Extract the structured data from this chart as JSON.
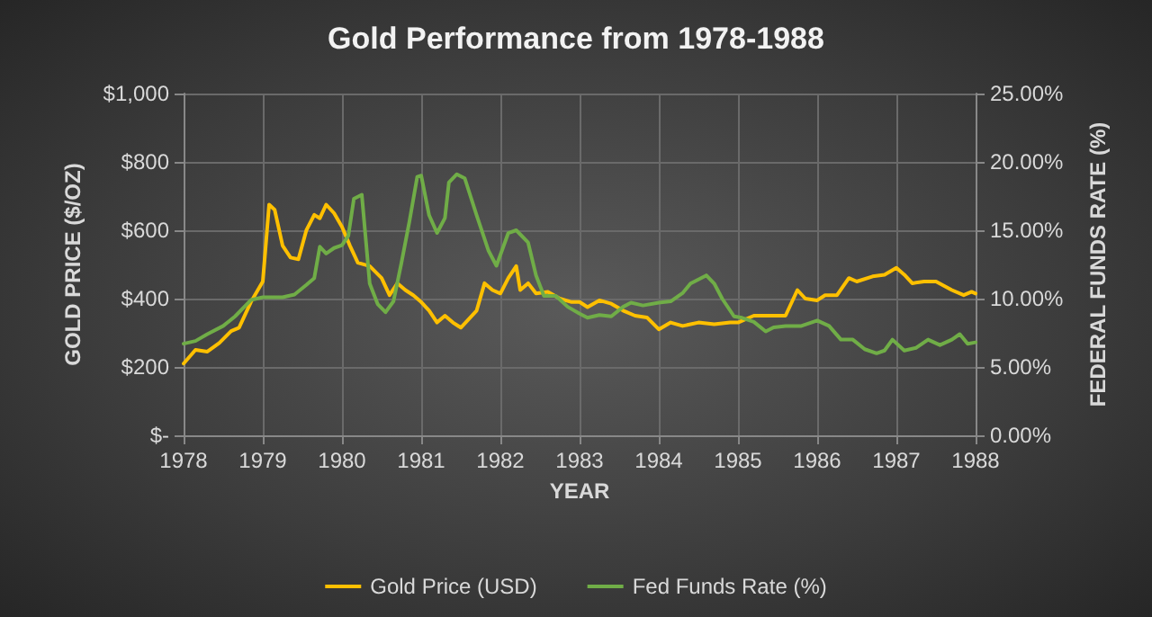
{
  "chart_data": {
    "type": "line",
    "title": "Gold Performance from 1978-1988",
    "xlabel": "YEAR",
    "ylabel": "GOLD PRICE ($/OZ)",
    "y2label": "FEDERAL FUNDS RATE (%)",
    "xlim": [
      1978,
      1988
    ],
    "xticks": [
      1978,
      1979,
      1980,
      1981,
      1982,
      1983,
      1984,
      1985,
      1986,
      1987,
      1988
    ],
    "ylim": [
      0,
      1000
    ],
    "yticks": [
      {
        "value": 0,
        "label": "$-"
      },
      {
        "value": 200,
        "label": "$200"
      },
      {
        "value": 400,
        "label": "$400"
      },
      {
        "value": 600,
        "label": "$600"
      },
      {
        "value": 800,
        "label": "$800"
      },
      {
        "value": 1000,
        "label": "$1,000"
      }
    ],
    "y2lim": [
      0,
      25
    ],
    "y2ticks": [
      {
        "value": 0,
        "label": "0.00%"
      },
      {
        "value": 5,
        "label": "5.00%"
      },
      {
        "value": 10,
        "label": "10.00%"
      },
      {
        "value": 15,
        "label": "15.00%"
      },
      {
        "value": 20,
        "label": "20.00%"
      },
      {
        "value": 25,
        "label": "25.00%"
      }
    ],
    "grid": true,
    "legend": "bottom",
    "marker": "none",
    "line_style": "solid",
    "series": [
      {
        "name": "Gold Price (USD)",
        "color": "#ffc000",
        "x": [
          1978,
          1978.15,
          1978.3,
          1978.45,
          1978.6,
          1978.7,
          1978.85,
          1979,
          1979.08,
          1979.15,
          1979.25,
          1979.35,
          1979.45,
          1979.55,
          1979.65,
          1979.72,
          1979.8,
          1979.9,
          1980,
          1980.1,
          1980.2,
          1980.35,
          1980.5,
          1980.6,
          1980.7,
          1980.8,
          1980.9,
          1981,
          1981.1,
          1981.2,
          1981.3,
          1981.4,
          1981.5,
          1981.6,
          1981.7,
          1981.8,
          1981.9,
          1982,
          1982.1,
          1982.2,
          1982.25,
          1982.35,
          1982.45,
          1982.6,
          1982.75,
          1982.9,
          1983,
          1983.1,
          1983.25,
          1983.4,
          1983.55,
          1983.7,
          1983.85,
          1984,
          1984.15,
          1984.3,
          1984.5,
          1984.7,
          1984.9,
          1985,
          1985.2,
          1985.4,
          1985.6,
          1985.75,
          1985.85,
          1986,
          1986.1,
          1986.25,
          1986.4,
          1986.5,
          1986.7,
          1986.85,
          1987,
          1987.1,
          1987.2,
          1987.35,
          1987.5,
          1987.7,
          1987.85,
          1987.95,
          1988
        ],
        "values": [
          210,
          250,
          245,
          270,
          305,
          315,
          390,
          450,
          675,
          660,
          555,
          520,
          515,
          600,
          645,
          635,
          675,
          650,
          610,
          555,
          505,
          495,
          460,
          410,
          445,
          425,
          410,
          390,
          365,
          330,
          350,
          330,
          315,
          340,
          365,
          445,
          425,
          415,
          460,
          495,
          425,
          445,
          415,
          420,
          400,
          390,
          390,
          375,
          395,
          385,
          365,
          350,
          345,
          310,
          330,
          320,
          330,
          325,
          330,
          330,
          350,
          350,
          350,
          425,
          400,
          395,
          410,
          410,
          460,
          450,
          465,
          470,
          490,
          470,
          445,
          450,
          450,
          425,
          410,
          420,
          415
        ]
      },
      {
        "name": "Fed Funds Rate (%)",
        "color": "#70ad47",
        "axis": "y2",
        "x": [
          1978,
          1978.15,
          1978.3,
          1978.5,
          1978.65,
          1978.85,
          1979,
          1979.25,
          1979.4,
          1979.55,
          1979.65,
          1979.72,
          1979.8,
          1979.9,
          1980,
          1980.08,
          1980.15,
          1980.25,
          1980.35,
          1980.45,
          1980.55,
          1980.65,
          1980.75,
          1980.85,
          1980.95,
          1981,
          1981.1,
          1981.2,
          1981.3,
          1981.35,
          1981.45,
          1981.55,
          1981.7,
          1981.85,
          1981.95,
          1982.1,
          1982.2,
          1982.35,
          1982.45,
          1982.55,
          1982.7,
          1982.85,
          1983,
          1983.1,
          1983.25,
          1983.4,
          1983.55,
          1983.65,
          1983.8,
          1984,
          1984.15,
          1984.3,
          1984.4,
          1984.6,
          1984.7,
          1984.8,
          1984.95,
          1985.05,
          1985.2,
          1985.35,
          1985.45,
          1985.6,
          1985.8,
          1986,
          1986.15,
          1986.3,
          1986.45,
          1986.6,
          1986.75,
          1986.85,
          1986.95,
          1987.1,
          1987.25,
          1987.4,
          1987.55,
          1987.7,
          1987.8,
          1987.9,
          1988
        ],
        "values": [
          6.7,
          6.9,
          7.4,
          8,
          8.7,
          9.9,
          10.1,
          10.1,
          10.3,
          11,
          11.5,
          13.8,
          13.3,
          13.7,
          13.9,
          14.6,
          17.3,
          17.6,
          11.1,
          9.6,
          9,
          9.8,
          12.6,
          15.6,
          18.9,
          19,
          16.1,
          14.8,
          15.9,
          18.5,
          19.1,
          18.8,
          16.1,
          13.5,
          12.4,
          14.8,
          15,
          14.1,
          11.7,
          10.2,
          10.2,
          9.4,
          8.9,
          8.6,
          8.8,
          8.7,
          9.4,
          9.7,
          9.5,
          9.7,
          9.8,
          10.4,
          11.1,
          11.7,
          11.1,
          10,
          8.7,
          8.6,
          8.3,
          7.6,
          7.9,
          8,
          8,
          8.4,
          8,
          7,
          7,
          6.3,
          6,
          6.2,
          7,
          6.2,
          6.4,
          7,
          6.6,
          7,
          7.4,
          6.7,
          6.8
        ]
      }
    ]
  }
}
